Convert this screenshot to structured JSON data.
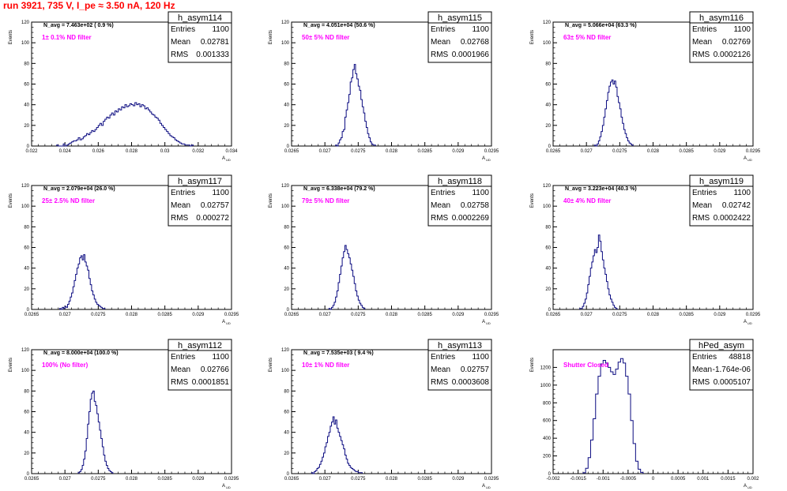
{
  "page": {
    "title": "run 3921,   735 V, I_pe ≈ 3.50 nA, 120 Hz"
  },
  "colors": {
    "histogram": "#0a0a80",
    "annotation": "#ff00ff",
    "title": "#ff0000"
  },
  "chart_data": [
    {
      "type": "histogram",
      "name": "h_asym114",
      "stats": [
        [
          "Entries",
          "1100"
        ],
        [
          "Mean",
          "0.02781"
        ],
        [
          "RMS",
          "0.001333"
        ]
      ],
      "navg": "N_avg = 7.463e+02 ( 0.9 %)",
      "note": "1± 0.1% ND filter",
      "ylabel": "Events",
      "xlabel": "A_UD",
      "xlim": [
        0.022,
        0.034
      ],
      "ylim": [
        0,
        120
      ],
      "xticks": [
        0.022,
        0.024,
        0.026,
        0.028,
        0.03,
        0.032,
        0.034
      ],
      "xtick_labels": [
        "0.022",
        "0.024",
        "0.026",
        "0.028",
        "0.03",
        "0.032",
        "0.034"
      ],
      "yticks": [
        0,
        20,
        40,
        60,
        80,
        100,
        120
      ],
      "bin_start": 0.0235,
      "bin_width": 0.0001,
      "counts": [
        1,
        0,
        0,
        0,
        2,
        0,
        1,
        2,
        3,
        4,
        5,
        5,
        6,
        8,
        6,
        7,
        9,
        10,
        12,
        11,
        13,
        15,
        14,
        16,
        18,
        20,
        22,
        20,
        24,
        26,
        28,
        27,
        30,
        32,
        30,
        34,
        33,
        36,
        35,
        38,
        37,
        40,
        38,
        39,
        41,
        40,
        39,
        42,
        40,
        41,
        38,
        40,
        39,
        36,
        37,
        35,
        33,
        31,
        30,
        28,
        27,
        25,
        22,
        20,
        18,
        16,
        14,
        12,
        10,
        9,
        8,
        6,
        5,
        4,
        3,
        2,
        2,
        1,
        1,
        1,
        0,
        1
      ]
    },
    {
      "type": "histogram",
      "name": "h_asym115",
      "stats": [
        [
          "Entries",
          "1100"
        ],
        [
          "Mean",
          "0.02768"
        ],
        [
          "RMS",
          "0.0001966"
        ]
      ],
      "navg": "N_avg = 4.051e+04 (50.6 %)",
      "note": "50± 5% ND filter",
      "ylabel": "Events",
      "xlabel": "A_UD",
      "xlim": [
        0.0265,
        0.0295
      ],
      "ylim": [
        0,
        120
      ],
      "xticks": [
        0.0265,
        0.027,
        0.0275,
        0.028,
        0.0285,
        0.029,
        0.0295
      ],
      "xtick_labels": [
        "0.0265",
        "0.027",
        "0.0275",
        "0.028",
        "0.0285",
        "0.029",
        "0.0295"
      ],
      "yticks": [
        0,
        20,
        40,
        60,
        80,
        100,
        120
      ],
      "bin_start": 0.02716,
      "bin_width": 2e-05,
      "counts": [
        1,
        0,
        3,
        6,
        8,
        14,
        16,
        28,
        35,
        42,
        50,
        62,
        66,
        74,
        79,
        70,
        65,
        58,
        54,
        45,
        38,
        32,
        24,
        18,
        12,
        8,
        4,
        2,
        1,
        1
      ]
    },
    {
      "type": "histogram",
      "name": "h_asym116",
      "stats": [
        [
          "Entries",
          "1100"
        ],
        [
          "Mean",
          "0.02769"
        ],
        [
          "RMS",
          "0.0002126"
        ]
      ],
      "navg": "N_avg = 5.066e+04 (63.3 %)",
      "note": "63± 5% ND filter",
      "ylabel": "Events",
      "xlabel": "A_UD",
      "xlim": [
        0.0265,
        0.0295
      ],
      "ylim": [
        0,
        120
      ],
      "xticks": [
        0.0265,
        0.027,
        0.0275,
        0.028,
        0.0285,
        0.029,
        0.0295
      ],
      "xtick_labels": [
        "0.0265",
        "0.027",
        "0.0275",
        "0.028",
        "0.0285",
        "0.029",
        "0.0295"
      ],
      "yticks": [
        0,
        20,
        40,
        60,
        80,
        100,
        120
      ],
      "bin_start": 0.02712,
      "bin_width": 2e-05,
      "counts": [
        1,
        0,
        2,
        5,
        9,
        14,
        20,
        28,
        36,
        44,
        52,
        58,
        62,
        64,
        60,
        63,
        57,
        48,
        42,
        36,
        28,
        22,
        16,
        12,
        8,
        5,
        3,
        2,
        1
      ]
    },
    {
      "type": "histogram",
      "name": "h_asym117",
      "stats": [
        [
          "Entries",
          "1100"
        ],
        [
          "Mean",
          "0.02757"
        ],
        [
          "RMS",
          "0.000272"
        ]
      ],
      "navg": "N_avg = 2.079e+04 (26.0 %)",
      "note": "25± 2.5% ND filter",
      "ylabel": "Events",
      "xlabel": "A_UD",
      "xlim": [
        0.0265,
        0.0295
      ],
      "ylim": [
        0,
        120
      ],
      "xticks": [
        0.0265,
        0.027,
        0.0275,
        0.028,
        0.0285,
        0.029,
        0.0295
      ],
      "xtick_labels": [
        "0.0265",
        "0.027",
        "0.0275",
        "0.028",
        "0.0285",
        "0.029",
        "0.0295"
      ],
      "yticks": [
        0,
        20,
        40,
        60,
        80,
        100,
        120
      ],
      "bin_start": 0.02692,
      "bin_width": 2e-05,
      "counts": [
        1,
        0,
        2,
        1,
        3,
        2,
        5,
        8,
        12,
        16,
        22,
        28,
        34,
        40,
        44,
        50,
        52,
        48,
        53,
        46,
        42,
        38,
        30,
        24,
        18,
        14,
        10,
        7,
        5,
        4,
        3,
        2,
        1,
        1
      ]
    },
    {
      "type": "histogram",
      "name": "h_asym118",
      "stats": [
        [
          "Entries",
          "1100"
        ],
        [
          "Mean",
          "0.02758"
        ],
        [
          "RMS",
          "0.0002269"
        ]
      ],
      "navg": "N_avg = 6.338e+04 (79.2 %)",
      "note": "79± 5% ND filter",
      "ylabel": "Events",
      "xlabel": "A_UD",
      "xlim": [
        0.0265,
        0.0295
      ],
      "ylim": [
        0,
        120
      ],
      "xticks": [
        0.0265,
        0.027,
        0.0275,
        0.028,
        0.0285,
        0.029,
        0.0295
      ],
      "xtick_labels": [
        "0.0265",
        "0.027",
        "0.0275",
        "0.028",
        "0.0285",
        "0.029",
        "0.0295"
      ],
      "yticks": [
        0,
        20,
        40,
        60,
        80,
        100,
        120
      ],
      "bin_start": 0.02706,
      "bin_width": 2e-05,
      "counts": [
        1,
        0,
        2,
        4,
        7,
        12,
        18,
        26,
        34,
        42,
        50,
        56,
        62,
        58,
        54,
        50,
        44,
        38,
        32,
        25,
        18,
        13,
        9,
        6,
        4,
        2,
        1
      ]
    },
    {
      "type": "histogram",
      "name": "h_asym119",
      "stats": [
        [
          "Entries",
          "1100"
        ],
        [
          "Mean",
          "0.02742"
        ],
        [
          "RMS",
          "0.0002422"
        ]
      ],
      "navg": "N_avg = 3.223e+04 (40.3 %)",
      "note": "40± 4% ND filter",
      "ylabel": "Events",
      "xlabel": "A_UD",
      "xlim": [
        0.0265,
        0.0295
      ],
      "ylim": [
        0,
        120
      ],
      "xticks": [
        0.0265,
        0.027,
        0.0275,
        0.028,
        0.0285,
        0.029,
        0.0295
      ],
      "xtick_labels": [
        "0.0265",
        "0.027",
        "0.0275",
        "0.028",
        "0.0285",
        "0.029",
        "0.0295"
      ],
      "yticks": [
        0,
        20,
        40,
        60,
        80,
        100,
        120
      ],
      "bin_start": 0.0269,
      "bin_width": 2e-05,
      "counts": [
        1,
        1,
        3,
        6,
        10,
        16,
        24,
        32,
        40,
        46,
        52,
        58,
        55,
        60,
        72,
        66,
        56,
        48,
        40,
        34,
        27,
        20,
        14,
        10,
        7,
        4,
        2,
        1
      ]
    },
    {
      "type": "histogram",
      "name": "h_asym112",
      "stats": [
        [
          "Entries",
          "1100"
        ],
        [
          "Mean",
          "0.02766"
        ],
        [
          "RMS",
          "0.0001851"
        ]
      ],
      "navg": "N_avg = 8.000e+04 (100.0 %)",
      "note": "100% (No filter)",
      "ylabel": "Events",
      "xlabel": "A_UD",
      "xlim": [
        0.0265,
        0.0295
      ],
      "ylim": [
        0,
        120
      ],
      "xticks": [
        0.0265,
        0.027,
        0.0275,
        0.028,
        0.0285,
        0.029,
        0.0295
      ],
      "xtick_labels": [
        "0.0265",
        "0.027",
        "0.0275",
        "0.028",
        "0.0285",
        "0.029",
        "0.0295"
      ],
      "yticks": [
        0,
        20,
        40,
        60,
        80,
        100,
        120
      ],
      "bin_start": 0.0272,
      "bin_width": 2e-05,
      "counts": [
        1,
        2,
        4,
        8,
        14,
        22,
        34,
        48,
        60,
        72,
        78,
        80,
        70,
        66,
        58,
        50,
        42,
        34,
        26,
        18,
        12,
        8,
        5,
        3,
        2,
        1
      ]
    },
    {
      "type": "histogram",
      "name": "h_asym113",
      "stats": [
        [
          "Entries",
          "1100"
        ],
        [
          "Mean",
          "0.02757"
        ],
        [
          "RMS",
          "0.0003608"
        ]
      ],
      "navg": "N_avg = 7.535e+03 ( 9.4 %)",
      "note": "10± 1% ND filter",
      "ylabel": "Events",
      "xlabel": "A_UD",
      "xlim": [
        0.0265,
        0.0295
      ],
      "ylim": [
        0,
        120
      ],
      "xticks": [
        0.0265,
        0.027,
        0.0275,
        0.028,
        0.0285,
        0.029,
        0.0295
      ],
      "xtick_labels": [
        "0.0265",
        "0.027",
        "0.0275",
        "0.028",
        "0.0285",
        "0.029",
        "0.0295"
      ],
      "yticks": [
        0,
        20,
        40,
        60,
        80,
        100,
        120
      ],
      "bin_start": 0.0268,
      "bin_width": 2e-05,
      "counts": [
        1,
        0,
        2,
        3,
        5,
        6,
        9,
        12,
        16,
        20,
        26,
        30,
        36,
        40,
        46,
        50,
        55,
        48,
        52,
        44,
        40,
        36,
        32,
        28,
        24,
        18,
        14,
        10,
        8,
        6,
        5,
        4,
        3,
        2,
        2,
        1,
        1,
        1
      ]
    },
    {
      "type": "histogram",
      "name": "hPed_asym",
      "stats": [
        [
          "Entries",
          "48818"
        ],
        [
          "Mean",
          "-1.764e-06"
        ],
        [
          "RMS",
          "0.0005107"
        ]
      ],
      "navg": "",
      "note": "Shutter Closed",
      "ylabel": "Events",
      "xlabel": "A_UD",
      "xlim": [
        -0.002,
        0.002
      ],
      "ylim": [
        0,
        1400
      ],
      "xticks": [
        -0.002,
        -0.0015,
        -0.001,
        -0.0005,
        0,
        0.0005,
        0.001,
        0.0015,
        0.002
      ],
      "xtick_labels": [
        "-0.002",
        "-0.0015",
        "-0.001",
        "-0.0005",
        "0",
        "0.0005",
        "0.001",
        "0.0015",
        "0.002"
      ],
      "yticks": [
        0,
        200,
        400,
        600,
        800,
        1000,
        1200
      ],
      "bin_start": -0.0014,
      "bin_width": 5e-05,
      "counts": [
        10,
        60,
        180,
        380,
        620,
        900,
        1100,
        1240,
        1280,
        1250,
        1200,
        1150,
        1120,
        1180,
        1260,
        1300,
        1250,
        1100,
        900,
        600,
        340,
        140,
        50,
        15
      ]
    }
  ]
}
